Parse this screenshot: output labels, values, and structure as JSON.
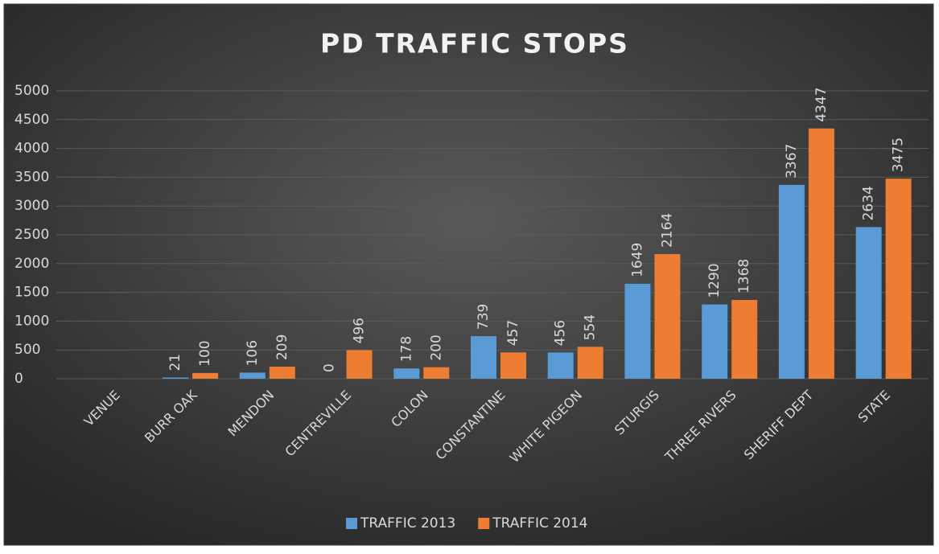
{
  "chart_data": {
    "type": "bar",
    "title": "PD TRAFFIC STOPS",
    "categories": [
      "VENUE",
      "BURR OAK",
      "MENDON",
      "CENTREVILLE",
      "COLON",
      "CONSTANTINE",
      "WHITE PIGEON",
      "STURGIS",
      "THREE RIVERS",
      "SHERIFF DEPT",
      "STATE"
    ],
    "series": [
      {
        "name": "TRAFFIC 2013",
        "color": "#5b9bd5",
        "values": [
          null,
          21,
          106,
          0,
          178,
          739,
          456,
          1649,
          1290,
          3367,
          2634
        ]
      },
      {
        "name": "TRAFFIC 2014",
        "color": "#ed7d31",
        "values": [
          null,
          100,
          209,
          496,
          200,
          457,
          554,
          2164,
          1368,
          4347,
          3475
        ]
      }
    ],
    "ylim": [
      0,
      5000
    ],
    "yticks": [
      0,
      500,
      1000,
      1500,
      2000,
      2500,
      3000,
      3500,
      4000,
      4500,
      5000
    ],
    "grid": true,
    "legend": "bottom"
  }
}
